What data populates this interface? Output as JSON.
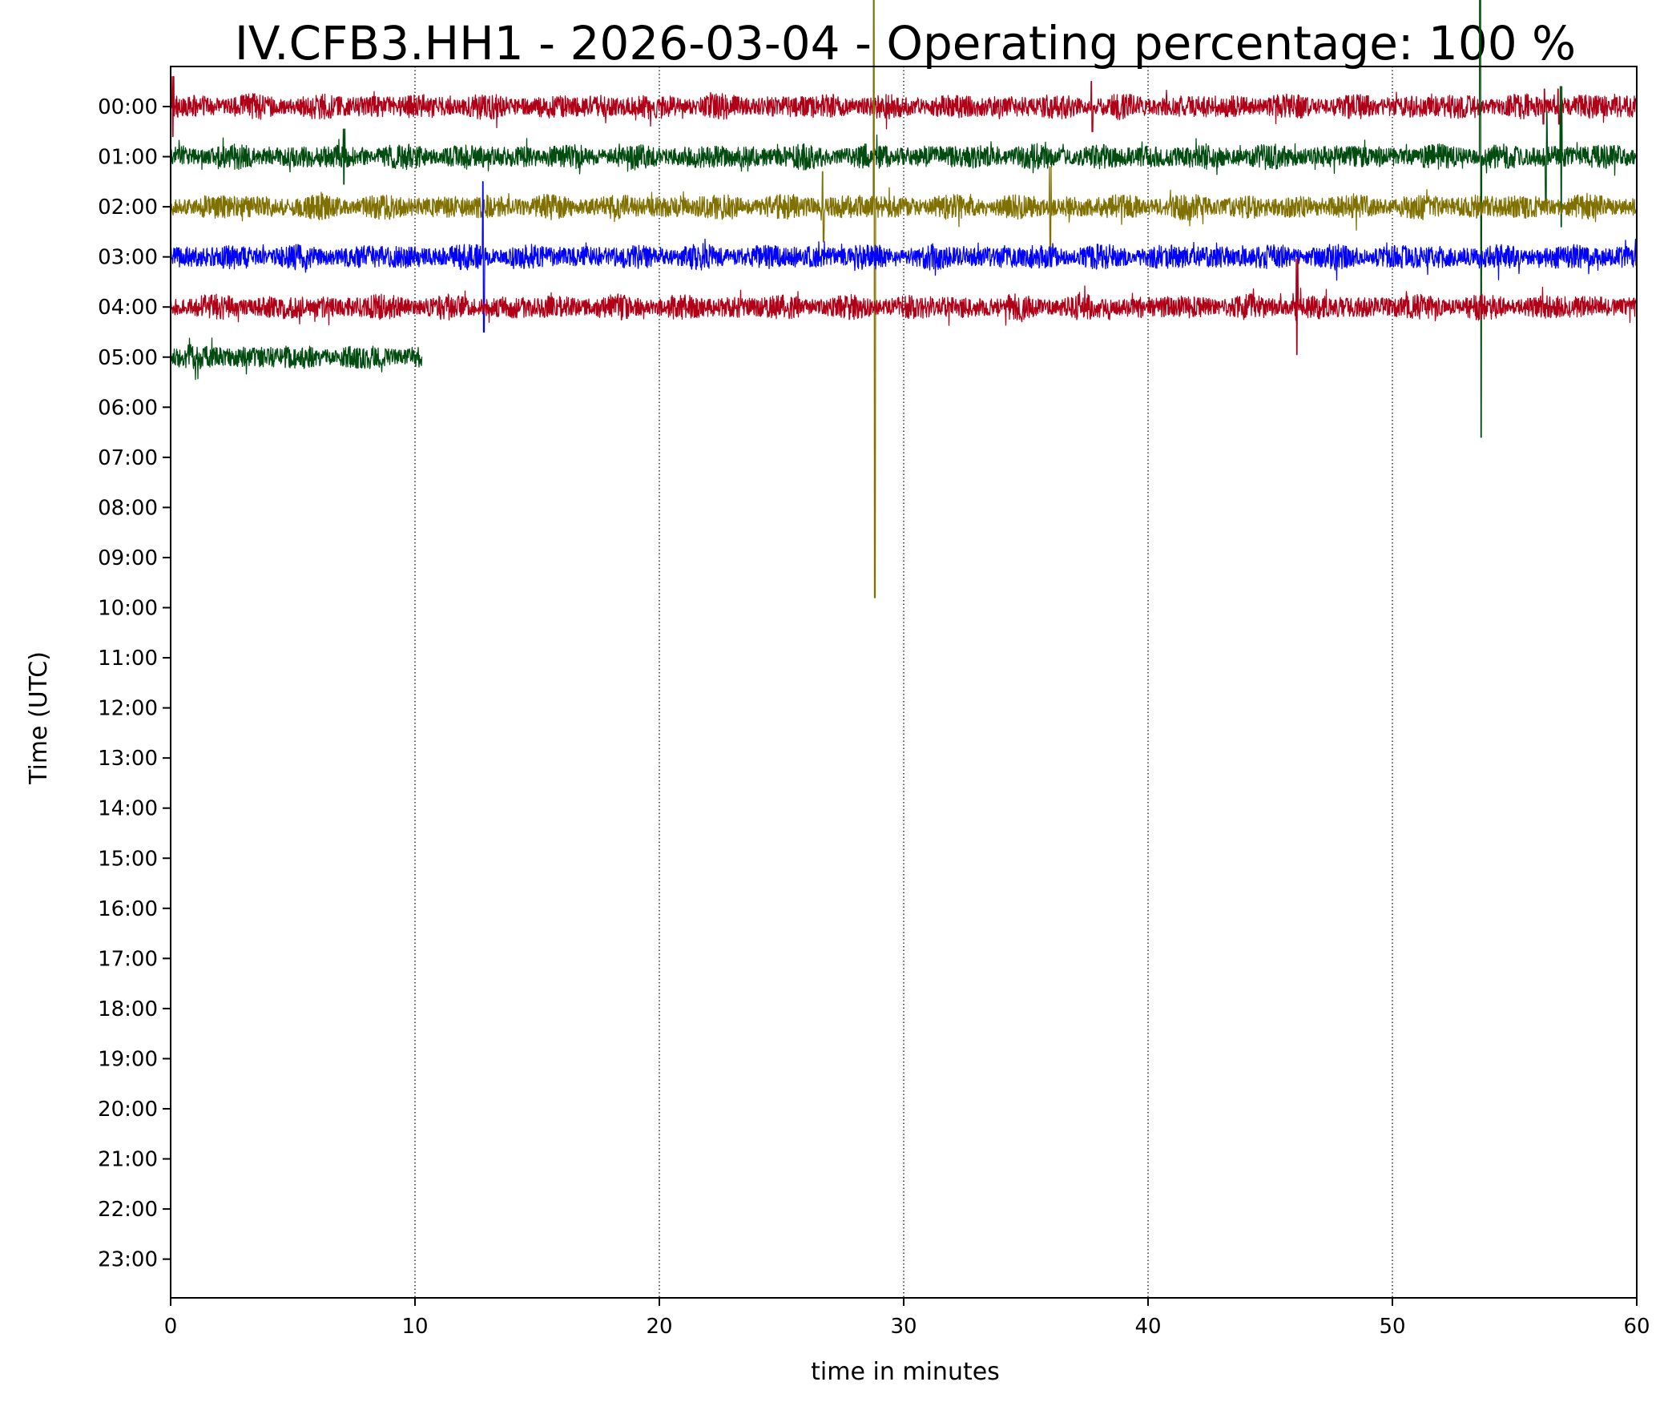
{
  "chart_data": {
    "type": "line",
    "title": "IV.CFB3.HH1 - 2026-03-04 - Operating percentage: 100 %",
    "xlabel": "time in minutes",
    "ylabel": "Time (UTC)",
    "xlim": [
      0,
      60
    ],
    "x_ticks": [
      "0",
      "10",
      "20",
      "30",
      "40",
      "50",
      "60"
    ],
    "y_ticks": [
      "00:00",
      "01:00",
      "02:00",
      "03:00",
      "04:00",
      "05:00",
      "06:00",
      "07:00",
      "08:00",
      "09:00",
      "10:00",
      "11:00",
      "12:00",
      "13:00",
      "14:00",
      "15:00",
      "16:00",
      "17:00",
      "18:00",
      "19:00",
      "20:00",
      "21:00",
      "22:00",
      "23:00"
    ],
    "grid": "vertical dotted at every 10 minutes",
    "series": [
      {
        "hour": "00:00",
        "color": "#b00018",
        "start_min": 0,
        "end_min": 60,
        "spikes": [
          {
            "x": 0.1,
            "amp": 0.6
          },
          {
            "x": 37.7,
            "amp": 0.5
          },
          {
            "x": 56.2,
            "amp": 0.35
          },
          {
            "x": 56.8,
            "amp": 0.35
          }
        ]
      },
      {
        "hour": "01:00",
        "color": "#004c10",
        "start_min": 0,
        "end_min": 60,
        "spikes": [
          {
            "x": 7.1,
            "amp": 0.55
          },
          {
            "x": 53.6,
            "amp": 5.6
          },
          {
            "x": 56.3,
            "amp": 0.9
          },
          {
            "x": 56.9,
            "amp": 1.4
          }
        ]
      },
      {
        "hour": "02:00",
        "color": "#807000",
        "start_min": 0,
        "end_min": 60,
        "spikes": [
          {
            "x": 26.7,
            "amp": 0.7
          },
          {
            "x": 28.8,
            "amp": 7.8
          },
          {
            "x": 36.0,
            "amp": 0.8
          }
        ]
      },
      {
        "hour": "03:00",
        "color": "#0000ff",
        "start_min": 0,
        "end_min": 60,
        "spikes": [
          {
            "x": 12.8,
            "amp": 1.5
          }
        ]
      },
      {
        "hour": "04:00",
        "color": "#b00018",
        "start_min": 0,
        "end_min": 60,
        "spikes": [
          {
            "x": 46.1,
            "amp": 0.95
          }
        ]
      },
      {
        "hour": "05:00",
        "color": "#004c10",
        "start_min": 0,
        "end_min": 10.3,
        "spikes": []
      }
    ]
  },
  "colors": {
    "red": "#b00018",
    "green": "#004c10",
    "olive": "#807000",
    "blue": "#0000ff"
  }
}
